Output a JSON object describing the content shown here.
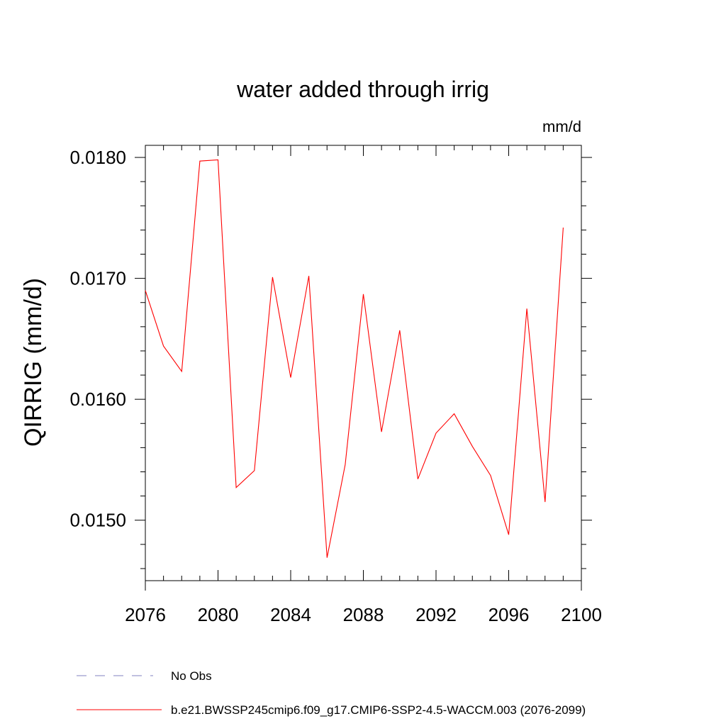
{
  "chart_data": {
    "type": "line",
    "title": "water added through irrig",
    "units_label": "mm/d",
    "ylabel": "QIRRIG  (mm/d)",
    "xlabel": "",
    "xlim": [
      2076,
      2100
    ],
    "ylim": [
      0.0145,
      0.0181
    ],
    "x_ticks": [
      2076,
      2080,
      2084,
      2088,
      2092,
      2096,
      2100
    ],
    "x_tick_labels": [
      "2076",
      "2080",
      "2084",
      "2088",
      "2092",
      "2096",
      "2100"
    ],
    "y_ticks": [
      0.015,
      0.016,
      0.017,
      0.018
    ],
    "y_tick_labels": [
      "0.0150",
      "0.0160",
      "0.0170",
      "0.0180"
    ],
    "x_minor_step": 1,
    "y_minor_step": 0.0002,
    "series": [
      {
        "name": "b.e21.BWSSP245cmip6.f09_g17.CMIP6-SSP2-4.5-WACCM.003 (2076-2099)",
        "color": "#ff0000",
        "style": "solid",
        "x": [
          2076,
          2077,
          2078,
          2079,
          2080,
          2081,
          2082,
          2083,
          2084,
          2085,
          2086,
          2087,
          2088,
          2089,
          2090,
          2091,
          2092,
          2093,
          2094,
          2095,
          2096,
          2097,
          2098,
          2099
        ],
        "values": [
          0.0169,
          0.01644,
          0.01623,
          0.01797,
          0.01798,
          0.01527,
          0.01541,
          0.01701,
          0.01618,
          0.01702,
          0.01469,
          0.01546,
          0.01687,
          0.01573,
          0.01657,
          0.01534,
          0.01572,
          0.01588,
          0.01561,
          0.01537,
          0.01488,
          0.01675,
          0.01515,
          0.01742
        ]
      }
    ],
    "legend": {
      "placement": "bottom-left",
      "entries": [
        {
          "label": "No Obs",
          "color": "#8080c0",
          "style": "dashed"
        },
        {
          "label": "b.e21.BWSSP245cmip6.f09_g17.CMIP6-SSP2-4.5-WACCM.003 (2076-2099)",
          "color": "#ff0000",
          "style": "solid"
        }
      ]
    }
  }
}
